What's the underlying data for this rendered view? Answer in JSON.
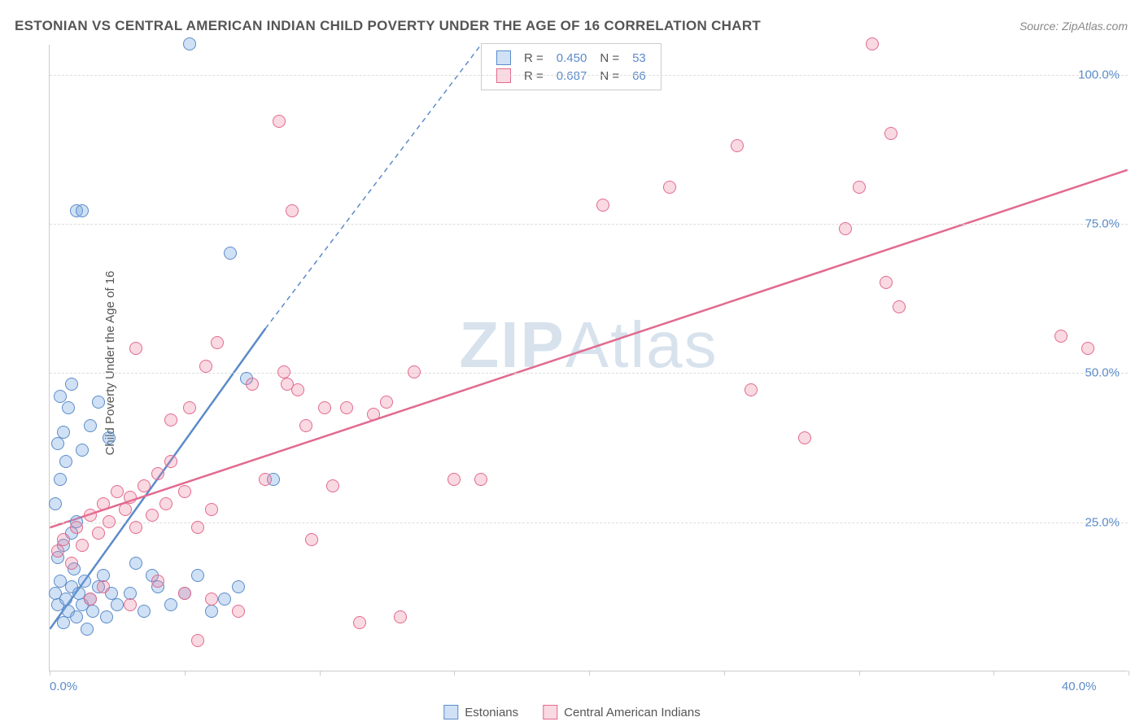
{
  "title": "ESTONIAN VS CENTRAL AMERICAN INDIAN CHILD POVERTY UNDER THE AGE OF 16 CORRELATION CHART",
  "source_label": "Source: ZipAtlas.com",
  "watermark_zip": "ZIP",
  "watermark_atlas": "Atlas",
  "ylabel": "Child Poverty Under the Age of 16",
  "chart": {
    "type": "scatter",
    "xlim": [
      0,
      40
    ],
    "ylim": [
      0,
      105
    ],
    "x_ticks": [
      0,
      5,
      10,
      15,
      20,
      25,
      30,
      35,
      40
    ],
    "x_tick_labels_shown": {
      "0": "0.0%",
      "40": "40.0%"
    },
    "y_ticks": [
      25,
      50,
      75,
      100
    ],
    "y_tick_labels": {
      "25": "25.0%",
      "50": "50.0%",
      "75": "75.0%",
      "100": "100.0%"
    },
    "background_color": "#ffffff",
    "grid_color": "#dddddd",
    "axis_color": "#cccccc",
    "tick_label_color": "#5b8bc9",
    "point_radius": 8,
    "series": [
      {
        "name": "Estonians",
        "color_fill": "rgba(120,170,225,0.35)",
        "color_stroke": "#5b8bc9",
        "regression": {
          "R": "0.450",
          "N": "53",
          "slope": 6.3,
          "intercept": 7,
          "x_solid_end": 8,
          "x_dash_end": 16
        },
        "points": [
          [
            0.2,
            13
          ],
          [
            0.3,
            11
          ],
          [
            0.4,
            15
          ],
          [
            0.5,
            8
          ],
          [
            0.6,
            12
          ],
          [
            0.7,
            10
          ],
          [
            0.8,
            14
          ],
          [
            0.9,
            17
          ],
          [
            1.0,
            9
          ],
          [
            1.1,
            13
          ],
          [
            1.2,
            11
          ],
          [
            1.3,
            15
          ],
          [
            1.4,
            7
          ],
          [
            1.5,
            12
          ],
          [
            1.6,
            10
          ],
          [
            1.8,
            14
          ],
          [
            2.0,
            16
          ],
          [
            2.1,
            9
          ],
          [
            2.3,
            13
          ],
          [
            2.5,
            11
          ],
          [
            0.3,
            19
          ],
          [
            0.5,
            21
          ],
          [
            0.8,
            23
          ],
          [
            1.0,
            25
          ],
          [
            0.2,
            28
          ],
          [
            0.4,
            32
          ],
          [
            0.6,
            35
          ],
          [
            0.3,
            38
          ],
          [
            0.5,
            40
          ],
          [
            0.7,
            44
          ],
          [
            0.4,
            46
          ],
          [
            1.2,
            37
          ],
          [
            1.5,
            41
          ],
          [
            1.8,
            45
          ],
          [
            2.2,
            39
          ],
          [
            0.8,
            48
          ],
          [
            1.0,
            77
          ],
          [
            1.2,
            77
          ],
          [
            5.2,
            105
          ],
          [
            6.7,
            70
          ],
          [
            7.3,
            49
          ],
          [
            3.0,
            13
          ],
          [
            3.5,
            10
          ],
          [
            4.0,
            14
          ],
          [
            4.5,
            11
          ],
          [
            5.0,
            13
          ],
          [
            5.5,
            16
          ],
          [
            6.0,
            10
          ],
          [
            6.5,
            12
          ],
          [
            7.0,
            14
          ],
          [
            3.2,
            18
          ],
          [
            3.8,
            16
          ],
          [
            8.3,
            32
          ]
        ]
      },
      {
        "name": "Central American Indians",
        "color_fill": "rgba(235,130,160,0.30)",
        "color_stroke": "#e26a8e",
        "regression": {
          "R": "0.687",
          "N": "66",
          "slope": 1.5,
          "intercept": 24,
          "x_solid_end": 40,
          "x_dash_end": 40
        },
        "points": [
          [
            0.3,
            20
          ],
          [
            0.5,
            22
          ],
          [
            0.8,
            18
          ],
          [
            1.0,
            24
          ],
          [
            1.2,
            21
          ],
          [
            1.5,
            26
          ],
          [
            1.8,
            23
          ],
          [
            2.0,
            28
          ],
          [
            2.2,
            25
          ],
          [
            2.5,
            30
          ],
          [
            2.8,
            27
          ],
          [
            3.0,
            29
          ],
          [
            3.2,
            24
          ],
          [
            3.5,
            31
          ],
          [
            3.8,
            26
          ],
          [
            4.0,
            33
          ],
          [
            4.3,
            28
          ],
          [
            4.5,
            35
          ],
          [
            5.0,
            30
          ],
          [
            5.5,
            24
          ],
          [
            6.0,
            27
          ],
          [
            1.5,
            12
          ],
          [
            2.0,
            14
          ],
          [
            3.0,
            11
          ],
          [
            4.0,
            15
          ],
          [
            5.0,
            13
          ],
          [
            6.0,
            12
          ],
          [
            7.0,
            10
          ],
          [
            5.5,
            5
          ],
          [
            8.5,
            92
          ],
          [
            9.0,
            77
          ],
          [
            8.7,
            50
          ],
          [
            8.8,
            48
          ],
          [
            9.2,
            47
          ],
          [
            7.5,
            48
          ],
          [
            4.5,
            42
          ],
          [
            5.2,
            44
          ],
          [
            5.8,
            51
          ],
          [
            6.2,
            55
          ],
          [
            3.2,
            54
          ],
          [
            10.5,
            31
          ],
          [
            11.0,
            44
          ],
          [
            12.0,
            43
          ],
          [
            12.5,
            45
          ],
          [
            13.5,
            50
          ],
          [
            8.0,
            32
          ],
          [
            9.5,
            41
          ],
          [
            11.5,
            8
          ],
          [
            15.0,
            32
          ],
          [
            16.0,
            32
          ],
          [
            20.5,
            78
          ],
          [
            23.0,
            81
          ],
          [
            25.5,
            88
          ],
          [
            26.0,
            47
          ],
          [
            28.0,
            39
          ],
          [
            29.5,
            74
          ],
          [
            30.0,
            81
          ],
          [
            30.5,
            105
          ],
          [
            31.0,
            65
          ],
          [
            31.2,
            90
          ],
          [
            31.5,
            61
          ],
          [
            37.5,
            56
          ],
          [
            38.5,
            54
          ],
          [
            9.7,
            22
          ],
          [
            10.2,
            44
          ],
          [
            13.0,
            9
          ]
        ]
      }
    ]
  },
  "regression_box_labels": {
    "R": "R =",
    "N": "N ="
  },
  "bottom_legend": {
    "items": [
      {
        "label": "Estonians",
        "fill": "rgba(120,170,225,0.35)",
        "stroke": "#5b8bc9"
      },
      {
        "label": "Central American Indians",
        "fill": "rgba(235,130,160,0.30)",
        "stroke": "#e26a8e"
      }
    ]
  }
}
